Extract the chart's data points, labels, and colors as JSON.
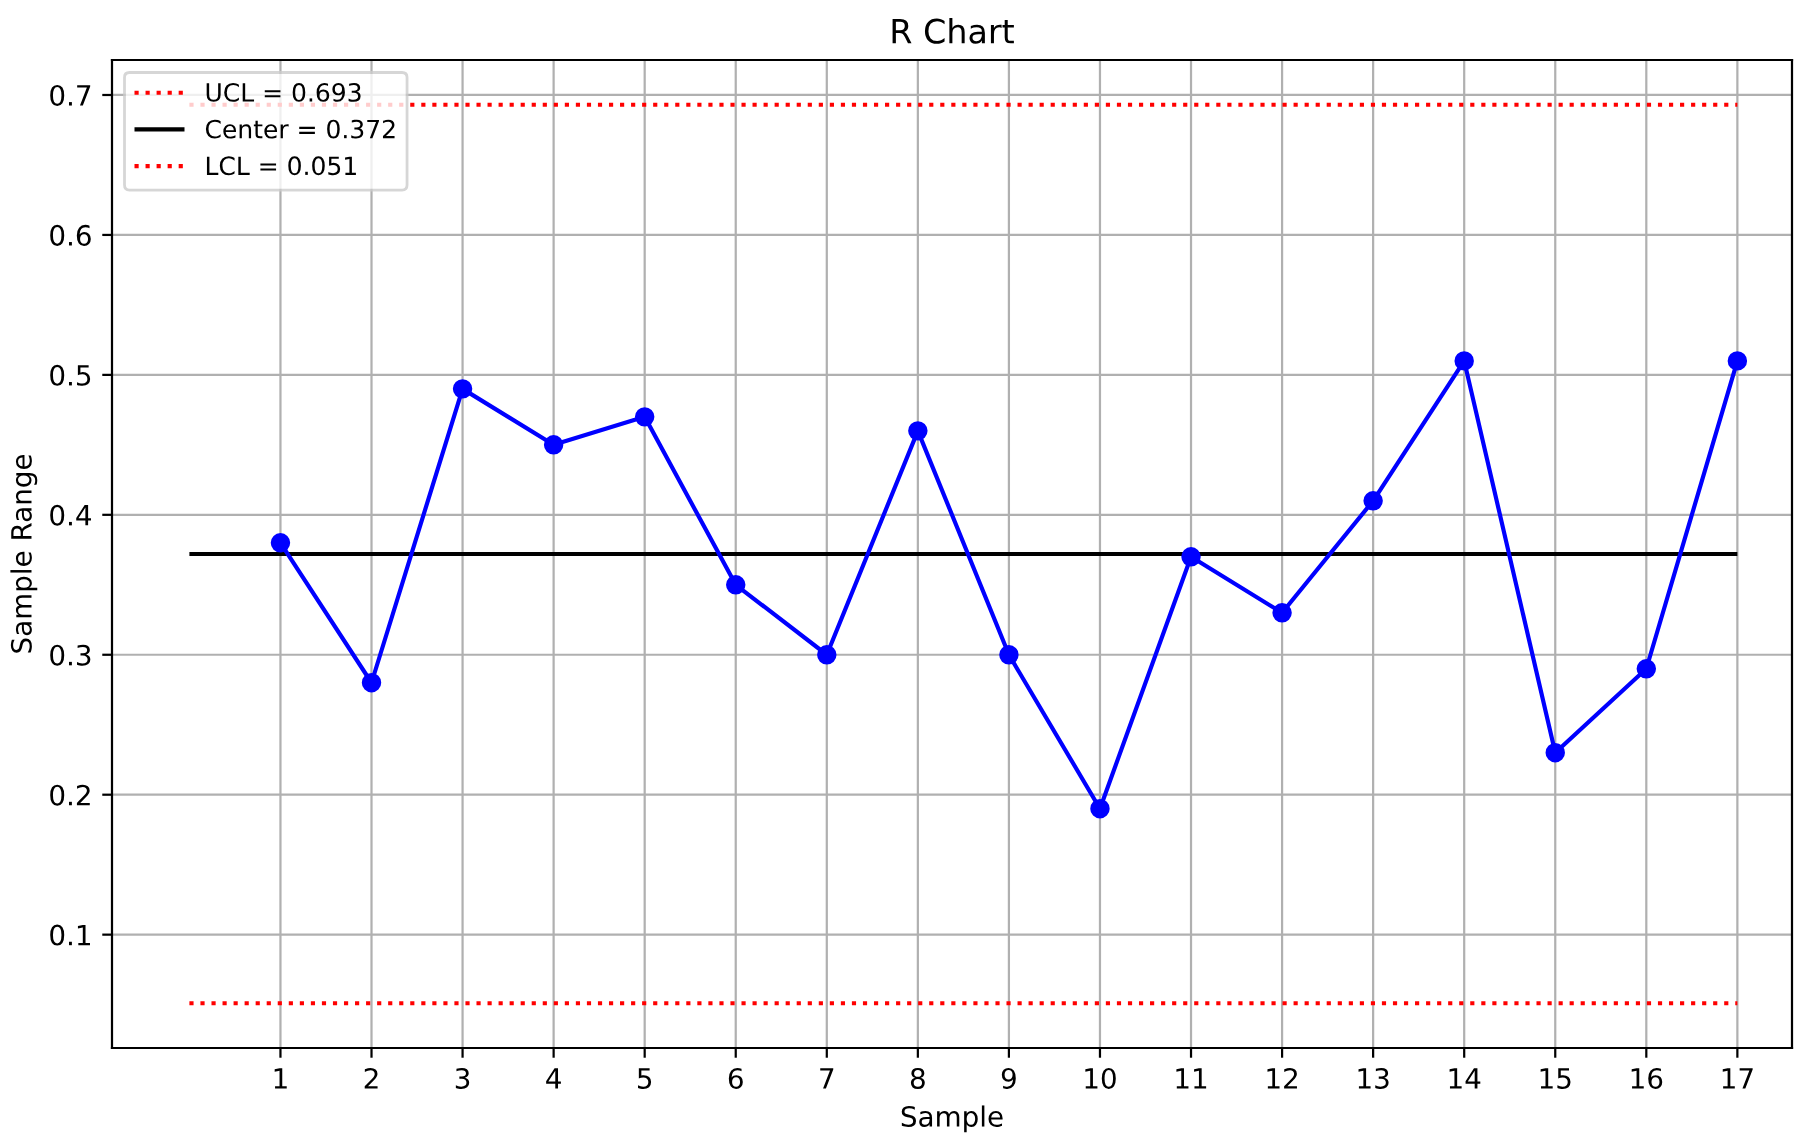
{
  "chart_data": {
    "type": "line",
    "title": "R Chart",
    "xlabel": "Sample",
    "ylabel": "Sample Range",
    "x": [
      1,
      2,
      3,
      4,
      5,
      6,
      7,
      8,
      9,
      10,
      11,
      12,
      13,
      14,
      15,
      16,
      17
    ],
    "series": [
      {
        "color": "#0000ff",
        "values": [
          0.38,
          0.28,
          0.49,
          0.45,
          0.47,
          0.35,
          0.3,
          0.46,
          0.3,
          0.19,
          0.37,
          0.33,
          0.41,
          0.51,
          0.23,
          0.29,
          0.51
        ]
      }
    ],
    "marker": "circle",
    "line_style": "solid",
    "xlim": [
      -0.85,
      17.6
    ],
    "xticks": [
      1,
      2,
      3,
      4,
      5,
      6,
      7,
      8,
      9,
      10,
      11,
      12,
      13,
      14,
      15,
      16,
      17
    ],
    "ylim": [
      0.019,
      0.725
    ],
    "yticks": [
      0.1,
      0.2,
      0.3,
      0.4,
      0.5,
      0.6,
      0.7
    ],
    "ref_lines": [
      {
        "axis": "y",
        "value": 0.693,
        "label": "UCL = 0.693",
        "color": "#ff0000",
        "line_style": "dotted"
      },
      {
        "axis": "y",
        "value": 0.372,
        "label": "Center = 0.372",
        "color": "#000000",
        "line_style": "solid"
      },
      {
        "axis": "y",
        "value": 0.051,
        "label": "LCL = 0.051",
        "color": "#ff0000",
        "line_style": "dotted"
      }
    ],
    "grid": true,
    "legend": "top left"
  }
}
